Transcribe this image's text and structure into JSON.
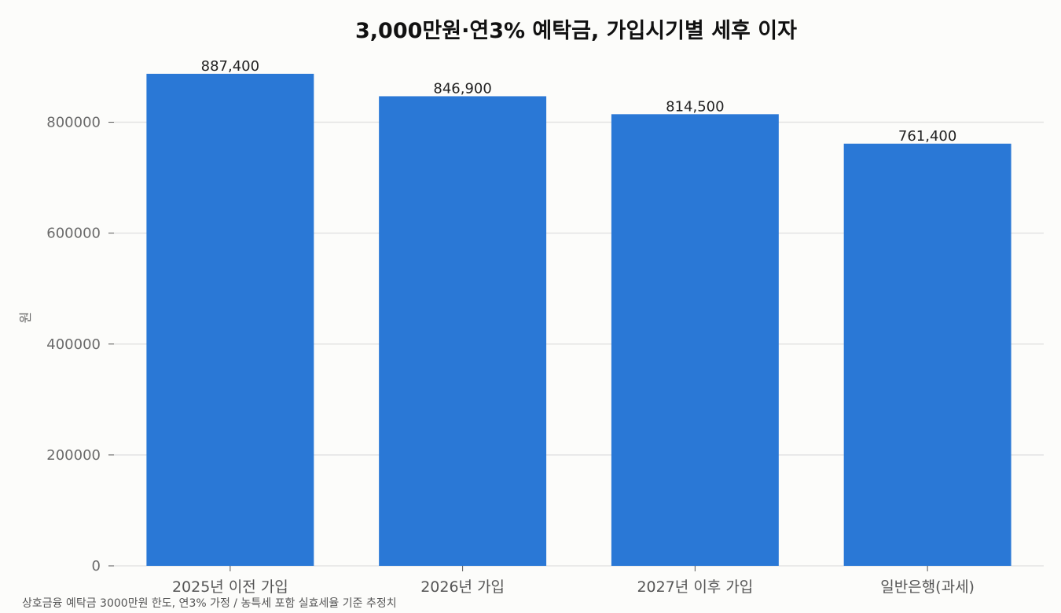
{
  "chart_data": {
    "type": "bar",
    "title": "3,000만원·연3% 예탁금, 가입시기별 세후 이자",
    "ylabel": "원",
    "xlabel": "",
    "categories": [
      "2025년 이전 가입",
      "2026년 가입",
      "2027년 이후 가입",
      "일반은행(과세)"
    ],
    "values": [
      887400,
      846900,
      814500,
      761400
    ],
    "data_labels": [
      "887,400",
      "846,900",
      "814,500",
      "761,400"
    ],
    "ylim": [
      0,
      900000
    ],
    "yticks": [
      0,
      200000,
      400000,
      600000,
      800000
    ],
    "ytick_labels": [
      "0",
      "200000",
      "400000",
      "600000",
      "800000"
    ],
    "grid": "horizontal",
    "colors": {
      "bar": "#2a78d6",
      "grid": "#e3e3e3",
      "background": "#fcfcfa"
    },
    "footnote": "상호금융 예탁금 3000만원 한도, 연3% 가정 / 농특세 포함 실효세율 기준 추정치"
  }
}
